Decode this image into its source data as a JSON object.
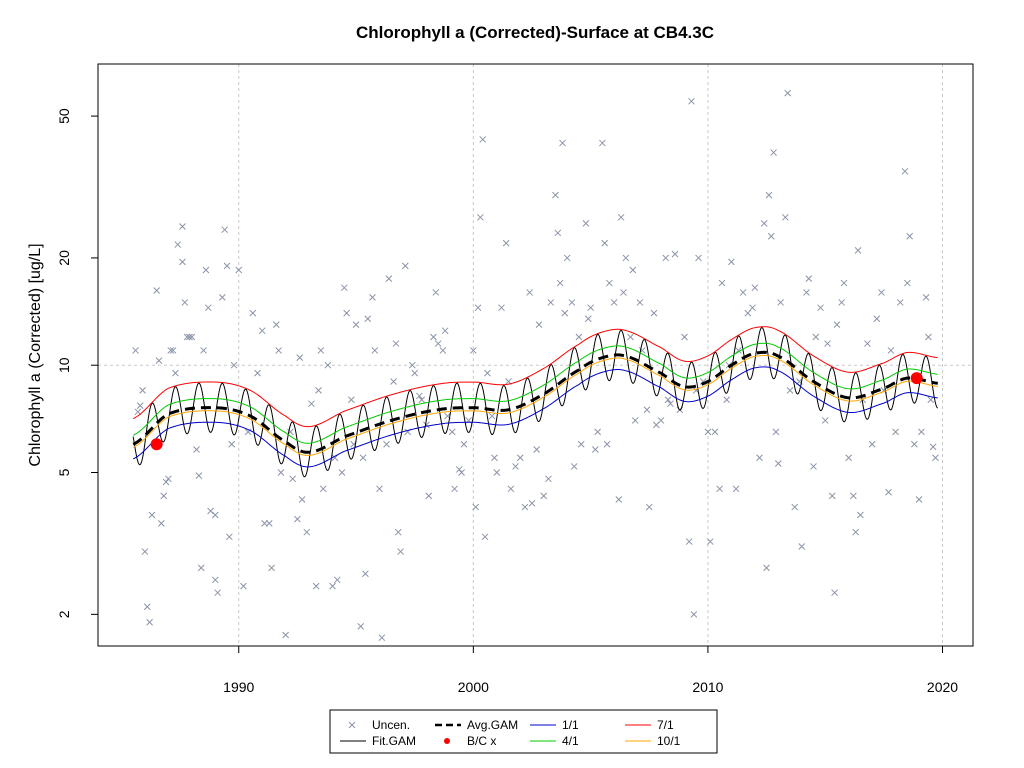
{
  "chart_data": {
    "type": "scatter",
    "title": "Chlorophyll a (Corrected)-Surface at CB4.3C",
    "ylabel": "Chlorophyll a (Corrected) [ug/L]",
    "xlabel": "",
    "y_scale": "log",
    "xlim": [
      1984.0,
      2021.3
    ],
    "ylim": [
      1.63,
      70.0
    ],
    "x_ticks": [
      1990,
      2000,
      2010,
      2020
    ],
    "y_ticks": [
      2,
      5,
      10,
      20,
      50
    ],
    "grid": true,
    "reference_lines": {
      "x": [
        1990,
        2000,
        2010,
        2020
      ],
      "y": [
        10
      ]
    },
    "legend_placement": "bottom-center",
    "legend": [
      {
        "label": "Uncen.",
        "kind": "cross",
        "color": "#8a94a8"
      },
      {
        "label": "Avg.GAM",
        "kind": "dashed-line",
        "color": "#000000"
      },
      {
        "label": "1/1",
        "kind": "line",
        "color": "#0000cc"
      },
      {
        "label": "7/1",
        "kind": "line",
        "color": "#ff0000"
      },
      {
        "label": "Fit.GAM",
        "kind": "line",
        "color": "#000000"
      },
      {
        "label": "B/C x",
        "kind": "dot",
        "color": "#ff0000"
      },
      {
        "label": "4/1",
        "kind": "line",
        "color": "#00cc00"
      },
      {
        "label": "10/1",
        "kind": "line",
        "color": "#ffa500"
      }
    ],
    "avg_gam_knots": [
      [
        1985.5,
        6.0
      ],
      [
        1987.0,
        7.3
      ],
      [
        1989.0,
        7.6
      ],
      [
        1990.5,
        7.2
      ],
      [
        1992.0,
        6.1
      ],
      [
        1993.0,
        5.7
      ],
      [
        1994.5,
        6.3
      ],
      [
        1996.5,
        7.0
      ],
      [
        1998.5,
        7.5
      ],
      [
        2000.0,
        7.6
      ],
      [
        2001.5,
        7.5
      ],
      [
        2003.0,
        8.3
      ],
      [
        2004.5,
        9.7
      ],
      [
        2005.5,
        10.5
      ],
      [
        2006.5,
        10.6
      ],
      [
        2008.0,
        9.5
      ],
      [
        2009.0,
        8.7
      ],
      [
        2010.0,
        9.0
      ],
      [
        2011.0,
        10.0
      ],
      [
        2012.0,
        10.8
      ],
      [
        2013.0,
        10.6
      ],
      [
        2014.5,
        9.0
      ],
      [
        2016.0,
        8.1
      ],
      [
        2017.5,
        8.6
      ],
      [
        2018.5,
        9.2
      ],
      [
        2019.8,
        8.9
      ]
    ],
    "seasonal_band_offsets": {
      "7/1": 1.18,
      "4/1": 1.06,
      "10/1": 0.98,
      "1/1": 0.91
    },
    "seasonal_band_colors": {
      "7/1": "#ff0000",
      "4/1": "#00cc00",
      "10/1": "#ffa500",
      "1/1": "#0000cc"
    },
    "fit_gam_amplitude": 0.16,
    "bc_points": [
      [
        1986.5,
        6.0
      ],
      [
        2018.9,
        9.2
      ]
    ],
    "observations": [
      [
        1985.6,
        11.0
      ],
      [
        1985.7,
        7.4
      ],
      [
        1985.8,
        7.7
      ],
      [
        1985.9,
        8.5
      ],
      [
        1986.0,
        3.0
      ],
      [
        1986.1,
        2.1
      ],
      [
        1986.2,
        1.9
      ],
      [
        1986.3,
        3.8
      ],
      [
        1986.5,
        16.2
      ],
      [
        1986.6,
        10.3
      ],
      [
        1986.7,
        3.6
      ],
      [
        1986.8,
        4.3
      ],
      [
        1986.9,
        4.7
      ],
      [
        1987.0,
        4.8
      ],
      [
        1987.1,
        11.0
      ],
      [
        1987.2,
        11.0
      ],
      [
        1987.3,
        9.5
      ],
      [
        1987.4,
        21.8
      ],
      [
        1987.6,
        19.5
      ],
      [
        1987.6,
        24.5
      ],
      [
        1987.7,
        15.0
      ],
      [
        1987.8,
        12.0
      ],
      [
        1987.9,
        12.0
      ],
      [
        1988.0,
        12.0
      ],
      [
        1988.2,
        5.8
      ],
      [
        1988.3,
        4.9
      ],
      [
        1988.4,
        2.7
      ],
      [
        1988.5,
        11.0
      ],
      [
        1988.6,
        18.5
      ],
      [
        1988.7,
        14.5
      ],
      [
        1988.8,
        3.9
      ],
      [
        1989.0,
        3.8
      ],
      [
        1989.0,
        2.5
      ],
      [
        1989.1,
        2.3
      ],
      [
        1989.3,
        15.5
      ],
      [
        1989.4,
        24.0
      ],
      [
        1989.5,
        19.0
      ],
      [
        1989.6,
        3.3
      ],
      [
        1989.7,
        6.0
      ],
      [
        1989.8,
        10.0
      ],
      [
        1990.0,
        18.5
      ],
      [
        1990.2,
        2.4
      ],
      [
        1990.4,
        6.5
      ],
      [
        1990.6,
        14.0
      ],
      [
        1990.8,
        9.5
      ],
      [
        1991.0,
        12.5
      ],
      [
        1991.1,
        3.6
      ],
      [
        1991.3,
        3.6
      ],
      [
        1991.4,
        2.7
      ],
      [
        1991.6,
        13.0
      ],
      [
        1991.7,
        11.0
      ],
      [
        1991.8,
        5.0
      ],
      [
        1992.0,
        1.75
      ],
      [
        1992.2,
        6.5
      ],
      [
        1992.3,
        4.8
      ],
      [
        1992.5,
        3.7
      ],
      [
        1992.6,
        10.5
      ],
      [
        1992.7,
        4.2
      ],
      [
        1992.9,
        3.4
      ],
      [
        1993.1,
        7.8
      ],
      [
        1993.3,
        2.4
      ],
      [
        1993.4,
        8.5
      ],
      [
        1993.5,
        11.0
      ],
      [
        1993.6,
        4.5
      ],
      [
        1993.8,
        10.0
      ],
      [
        1994.0,
        2.4
      ],
      [
        1994.1,
        5.5
      ],
      [
        1994.2,
        2.5
      ],
      [
        1994.4,
        5.0
      ],
      [
        1994.5,
        16.5
      ],
      [
        1994.6,
        14.0
      ],
      [
        1994.8,
        8.0
      ],
      [
        1994.9,
        6.0
      ],
      [
        1995.0,
        13.0
      ],
      [
        1995.2,
        1.85
      ],
      [
        1995.3,
        5.5
      ],
      [
        1995.4,
        2.6
      ],
      [
        1995.5,
        13.5
      ],
      [
        1995.7,
        15.5
      ],
      [
        1995.8,
        11.0
      ],
      [
        1996.0,
        4.5
      ],
      [
        1996.1,
        1.72
      ],
      [
        1996.3,
        6.0
      ],
      [
        1996.4,
        17.5
      ],
      [
        1996.6,
        9.0
      ],
      [
        1996.7,
        11.5
      ],
      [
        1996.8,
        3.4
      ],
      [
        1996.9,
        3.0
      ],
      [
        1997.1,
        19.0
      ],
      [
        1997.2,
        6.5
      ],
      [
        1997.4,
        10.0
      ],
      [
        1997.5,
        9.5
      ],
      [
        1997.7,
        8.2
      ],
      [
        1997.8,
        8.0
      ],
      [
        1998.0,
        6.8
      ],
      [
        1998.1,
        4.3
      ],
      [
        1998.3,
        12.0
      ],
      [
        1998.4,
        16.0
      ],
      [
        1998.5,
        11.5
      ],
      [
        1998.7,
        11.0
      ],
      [
        1998.8,
        12.5
      ],
      [
        1998.9,
        7.2
      ],
      [
        1999.1,
        6.5
      ],
      [
        1999.2,
        4.5
      ],
      [
        1999.4,
        5.1
      ],
      [
        1999.5,
        5.0
      ],
      [
        1999.6,
        6.0
      ],
      [
        1999.8,
        7.0
      ],
      [
        2000.0,
        11.0
      ],
      [
        2000.1,
        4.0
      ],
      [
        2000.2,
        14.5
      ],
      [
        2000.3,
        26.0
      ],
      [
        2000.4,
        43.0
      ],
      [
        2000.5,
        3.3
      ],
      [
        2000.6,
        9.5
      ],
      [
        2000.8,
        7.2
      ],
      [
        2000.9,
        5.5
      ],
      [
        2001.0,
        5.0
      ],
      [
        2001.2,
        14.5
      ],
      [
        2001.4,
        22.0
      ],
      [
        2001.5,
        9.0
      ],
      [
        2001.6,
        4.5
      ],
      [
        2001.8,
        5.2
      ],
      [
        2002.0,
        5.5
      ],
      [
        2002.2,
        4.0
      ],
      [
        2002.4,
        16.0
      ],
      [
        2002.5,
        4.1
      ],
      [
        2002.7,
        5.8
      ],
      [
        2002.8,
        13.0
      ],
      [
        2003.0,
        4.3
      ],
      [
        2003.2,
        4.8
      ],
      [
        2003.3,
        15.0
      ],
      [
        2003.5,
        30.0
      ],
      [
        2003.6,
        23.5
      ],
      [
        2003.7,
        17.0
      ],
      [
        2003.8,
        42.0
      ],
      [
        2003.9,
        14.0
      ],
      [
        2004.0,
        20.0
      ],
      [
        2004.2,
        15.0
      ],
      [
        2004.3,
        5.2
      ],
      [
        2004.5,
        12.0
      ],
      [
        2004.6,
        6.0
      ],
      [
        2004.8,
        25.0
      ],
      [
        2004.9,
        13.5
      ],
      [
        2005.0,
        14.5
      ],
      [
        2005.2,
        5.8
      ],
      [
        2005.3,
        6.5
      ],
      [
        2005.5,
        42.0
      ],
      [
        2005.6,
        22.0
      ],
      [
        2005.7,
        6.0
      ],
      [
        2005.8,
        17.0
      ],
      [
        2006.0,
        15.0
      ],
      [
        2006.2,
        4.2
      ],
      [
        2006.3,
        26.0
      ],
      [
        2006.4,
        16.0
      ],
      [
        2006.5,
        20.0
      ],
      [
        2006.7,
        12.0
      ],
      [
        2006.8,
        18.5
      ],
      [
        2006.9,
        7.0
      ],
      [
        2007.1,
        15.0
      ],
      [
        2007.2,
        11.0
      ],
      [
        2007.4,
        7.5
      ],
      [
        2007.5,
        4.0
      ],
      [
        2007.7,
        14.0
      ],
      [
        2007.8,
        6.8
      ],
      [
        2008.0,
        7.0
      ],
      [
        2008.2,
        20.0
      ],
      [
        2008.3,
        8.0
      ],
      [
        2008.4,
        7.8
      ],
      [
        2008.6,
        20.5
      ],
      [
        2008.8,
        7.5
      ],
      [
        2009.0,
        12.0
      ],
      [
        2009.2,
        3.2
      ],
      [
        2009.3,
        55.0
      ],
      [
        2009.4,
        2.0
      ],
      [
        2009.5,
        8.5
      ],
      [
        2009.6,
        20.0
      ],
      [
        2009.8,
        9.0
      ],
      [
        2010.0,
        6.5
      ],
      [
        2010.1,
        3.2
      ],
      [
        2010.3,
        6.5
      ],
      [
        2010.5,
        4.5
      ],
      [
        2010.6,
        17.0
      ],
      [
        2010.8,
        8.0
      ],
      [
        2010.9,
        10.0
      ],
      [
        2011.0,
        19.5
      ],
      [
        2011.2,
        4.5
      ],
      [
        2011.3,
        11.0
      ],
      [
        2011.5,
        16.0
      ],
      [
        2011.7,
        14.0
      ],
      [
        2011.9,
        14.5
      ],
      [
        2012.0,
        16.5
      ],
      [
        2012.2,
        5.5
      ],
      [
        2012.4,
        25.0
      ],
      [
        2012.5,
        2.7
      ],
      [
        2012.6,
        30.0
      ],
      [
        2012.7,
        23.0
      ],
      [
        2012.8,
        39.5
      ],
      [
        2012.9,
        6.5
      ],
      [
        2013.0,
        5.3
      ],
      [
        2013.1,
        15.0
      ],
      [
        2013.3,
        26.0
      ],
      [
        2013.4,
        58.0
      ],
      [
        2013.5,
        8.5
      ],
      [
        2013.7,
        4.0
      ],
      [
        2013.9,
        9.0
      ],
      [
        2014.0,
        3.1
      ],
      [
        2014.2,
        16.0
      ],
      [
        2014.3,
        17.5
      ],
      [
        2014.5,
        5.2
      ],
      [
        2014.6,
        12.0
      ],
      [
        2014.8,
        14.5
      ],
      [
        2015.0,
        7.0
      ],
      [
        2015.1,
        11.5
      ],
      [
        2015.3,
        4.3
      ],
      [
        2015.4,
        2.3
      ],
      [
        2015.5,
        13.0
      ],
      [
        2015.7,
        15.0
      ],
      [
        2015.8,
        17.0
      ],
      [
        2016.0,
        5.5
      ],
      [
        2016.2,
        4.3
      ],
      [
        2016.3,
        3.4
      ],
      [
        2016.4,
        21.0
      ],
      [
        2016.5,
        3.8
      ],
      [
        2016.6,
        8.0
      ],
      [
        2016.8,
        11.5
      ],
      [
        2017.0,
        6.0
      ],
      [
        2017.2,
        13.5
      ],
      [
        2017.4,
        16.0
      ],
      [
        2017.5,
        8.5
      ],
      [
        2017.7,
        4.4
      ],
      [
        2017.8,
        11.0
      ],
      [
        2018.0,
        6.5
      ],
      [
        2018.2,
        15.0
      ],
      [
        2018.4,
        35.0
      ],
      [
        2018.5,
        17.0
      ],
      [
        2018.6,
        23.0
      ],
      [
        2018.8,
        6.0
      ],
      [
        2019.0,
        4.2
      ],
      [
        2019.1,
        6.5
      ],
      [
        2019.3,
        15.5
      ],
      [
        2019.4,
        12.0
      ],
      [
        2019.5,
        8.0
      ],
      [
        2019.6,
        5.9
      ],
      [
        2019.7,
        5.5
      ]
    ]
  }
}
